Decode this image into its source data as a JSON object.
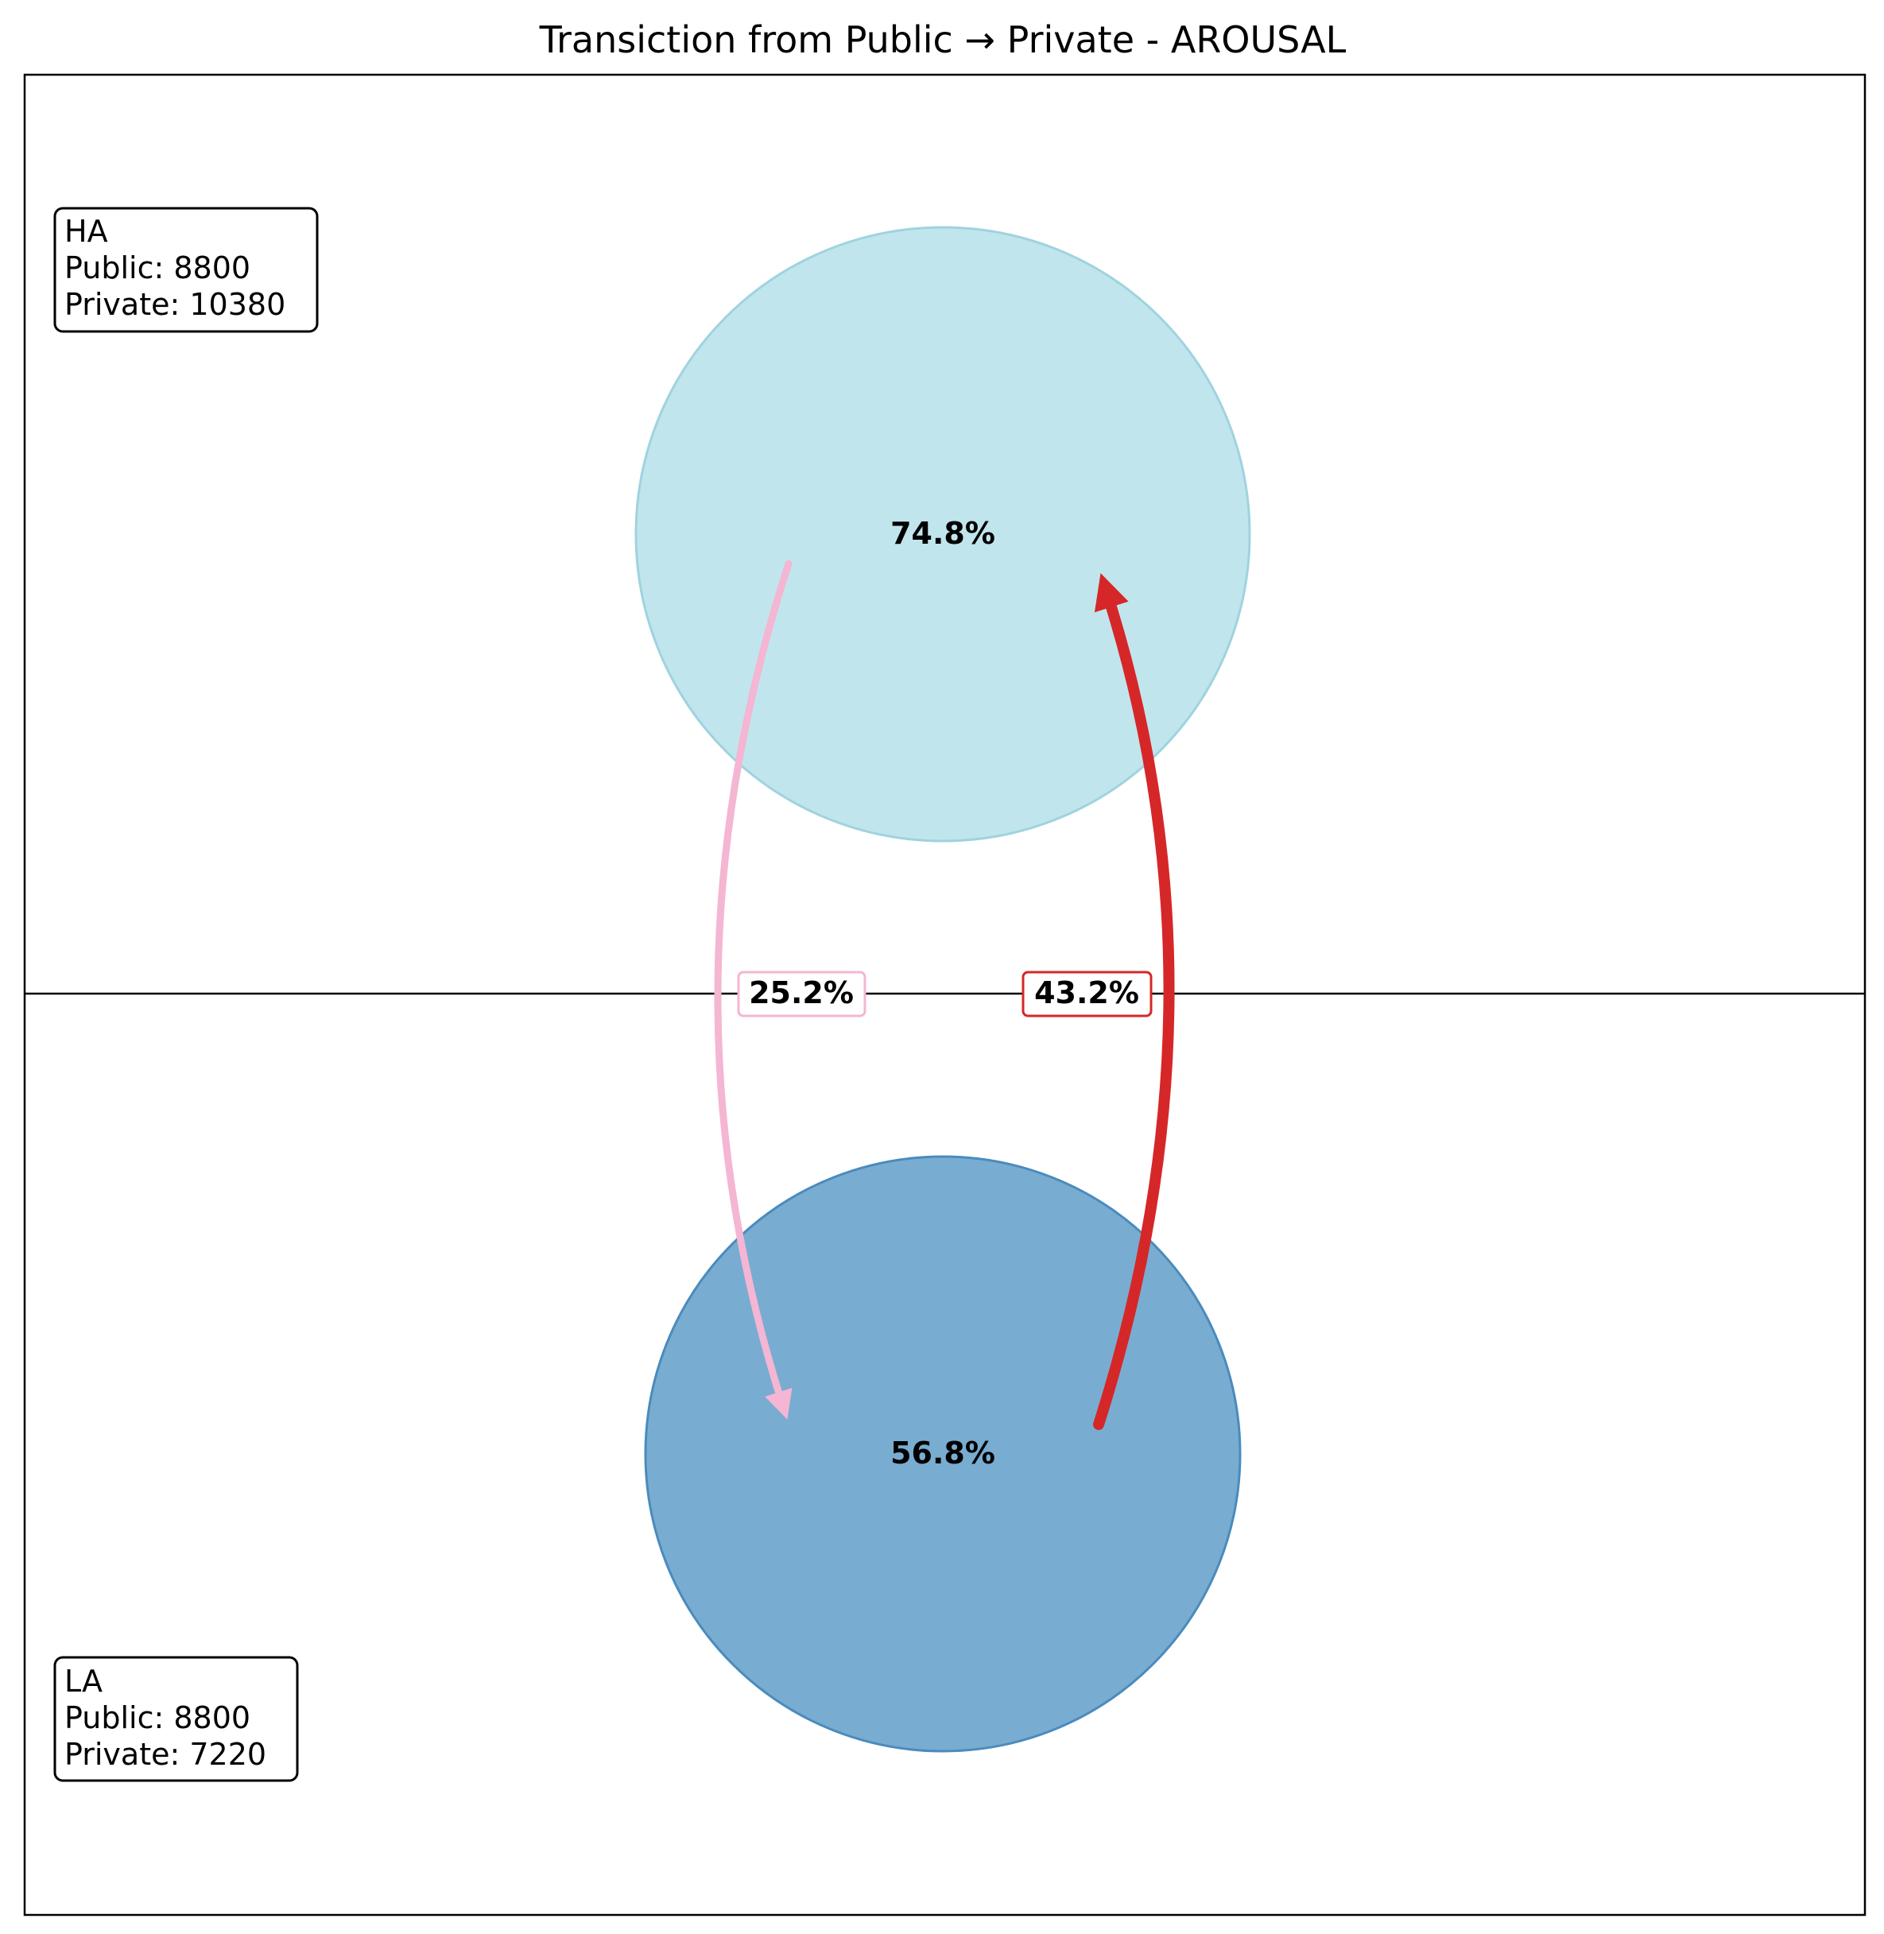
{
  "title": "Transiction from Public → Private - AROUSAL",
  "states": {
    "high": {
      "label": "HA",
      "public_label": "Public: 8800",
      "private_label": "Private: 10380",
      "stay_pct": "74.8%",
      "color": "#b6e0ea"
    },
    "low": {
      "label": "LA",
      "public_label": "Public: 8800",
      "private_label": "Private: 7220",
      "stay_pct": "56.8%",
      "color": "#6aa3cc"
    }
  },
  "transitions": {
    "high_to_low": {
      "pct": "25.2%",
      "color": "#f4b6d2"
    },
    "low_to_high": {
      "pct": "43.2%",
      "color": "#d62728"
    }
  }
}
